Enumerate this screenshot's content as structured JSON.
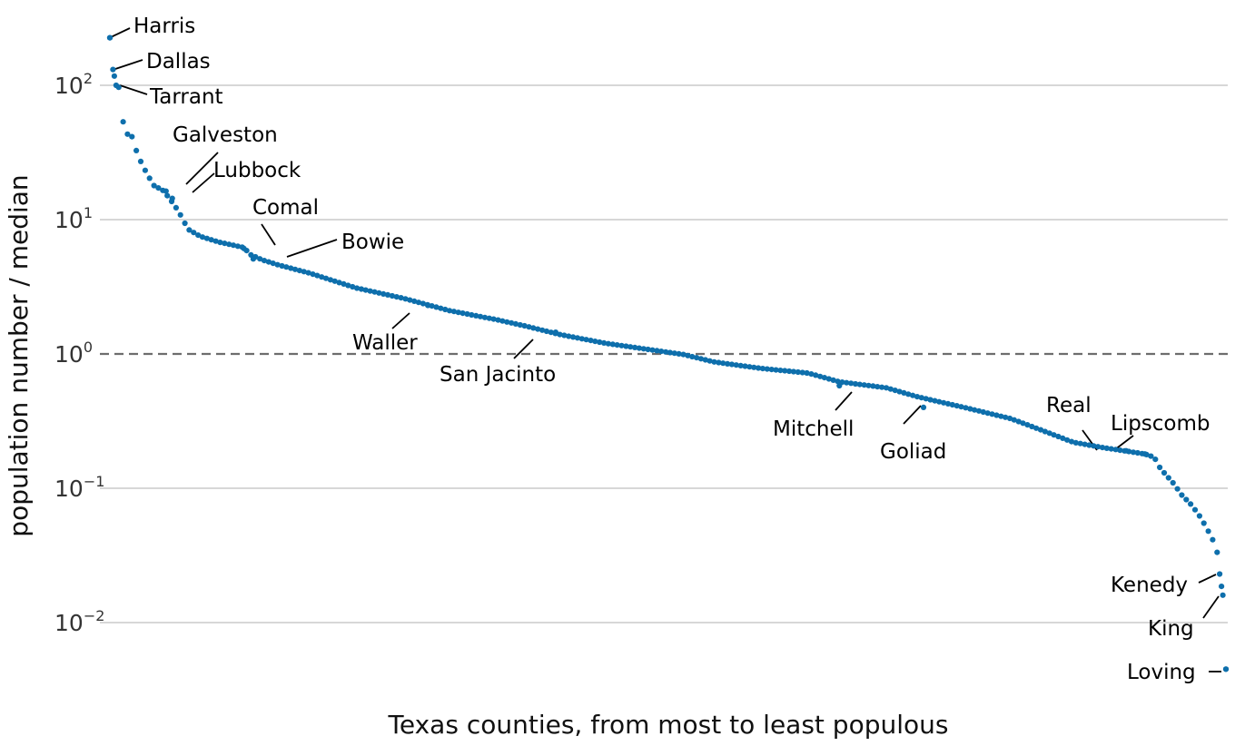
{
  "chart_data": {
    "type": "scatter",
    "xlabel": "Texas counties, from most to least populous",
    "ylabel": "population number / median",
    "y_scale": "log10",
    "ylim": [
      0.0035,
      320
    ],
    "y_ticks": [
      {
        "value": 0.01,
        "base": "10",
        "exp": "−2"
      },
      {
        "value": 0.1,
        "base": "10",
        "exp": "−1"
      },
      {
        "value": 1,
        "base": "10",
        "exp": "0"
      },
      {
        "value": 10,
        "base": "10",
        "exp": "1"
      },
      {
        "value": 100,
        "base": "10",
        "exp": "2"
      }
    ],
    "reference_line": {
      "value": 1,
      "style": "dashed"
    },
    "grid": true,
    "point_color": "#0e6fac",
    "n_points": 254,
    "profile": [
      [
        1,
        226
      ],
      [
        2,
        131
      ],
      [
        3,
        100
      ],
      [
        4,
        96
      ],
      [
        5,
        57
      ],
      [
        6,
        44
      ],
      [
        8,
        42
      ],
      [
        10,
        30
      ],
      [
        12,
        24
      ],
      [
        15,
        18
      ],
      [
        18,
        16.5
      ],
      [
        20,
        14.5
      ],
      [
        22,
        12.5
      ],
      [
        24,
        10.5
      ],
      [
        26,
        8.5
      ],
      [
        30,
        7.5
      ],
      [
        36,
        6.8
      ],
      [
        44,
        6.2
      ],
      [
        46,
        5.5
      ],
      [
        50,
        5.0
      ],
      [
        55,
        4.6
      ],
      [
        65,
        4.0
      ],
      [
        80,
        3.1
      ],
      [
        95,
        2.6
      ],
      [
        110,
        2.1
      ],
      [
        125,
        1.8
      ],
      [
        135,
        1.6
      ],
      [
        145,
        1.4
      ],
      [
        160,
        1.2
      ],
      [
        175,
        1.07
      ],
      [
        185,
        0.99
      ],
      [
        195,
        0.87
      ],
      [
        210,
        0.78
      ],
      [
        225,
        0.72
      ],
      [
        235,
        0.62
      ],
      [
        250,
        0.56
      ],
      [
        260,
        0.48
      ],
      [
        275,
        0.4
      ],
      [
        290,
        0.33
      ],
      [
        300,
        0.27
      ],
      [
        310,
        0.22
      ],
      [
        320,
        0.2
      ],
      [
        333,
        0.18
      ],
      [
        336,
        0.17
      ],
      [
        338,
        0.14
      ],
      [
        342,
        0.11
      ],
      [
        345,
        0.088
      ],
      [
        348,
        0.075
      ],
      [
        351,
        0.06
      ],
      [
        354,
        0.045
      ],
      [
        356,
        0.036
      ],
      [
        357,
        0.023
      ],
      [
        358,
        0.016
      ],
      [
        359,
        0.0045
      ]
    ],
    "labeled_points": [
      {
        "name": "Harris",
        "rank": 1,
        "value": 226
      },
      {
        "name": "Dallas",
        "rank": 2,
        "value": 131
      },
      {
        "name": "Tarrant",
        "rank": 3,
        "value": 100
      },
      {
        "name": "Galveston",
        "rank": 19,
        "value": 16.3
      },
      {
        "name": "Lubbock",
        "rank": 21,
        "value": 14.4
      },
      {
        "name": "Comal",
        "rank": 44,
        "value": 6.1
      },
      {
        "name": "Bowie",
        "rank": 47,
        "value": 5.1
      },
      {
        "name": "Waller",
        "rank": 103,
        "value": 2.3
      },
      {
        "name": "San Jacinto",
        "rank": 144,
        "value": 1.45
      },
      {
        "name": "Mitchell",
        "rank": 235,
        "value": 0.58
      },
      {
        "name": "Goliad",
        "rank": 262,
        "value": 0.4
      },
      {
        "name": "Real",
        "rank": 327,
        "value": 0.19
      },
      {
        "name": "Lipscomb",
        "rank": 333,
        "value": 0.18
      },
      {
        "name": "Kenedy",
        "rank": 357,
        "value": 0.023
      },
      {
        "name": "King",
        "rank": 358,
        "value": 0.016
      },
      {
        "name": "Loving",
        "rank": 359,
        "value": 0.0045
      }
    ]
  }
}
